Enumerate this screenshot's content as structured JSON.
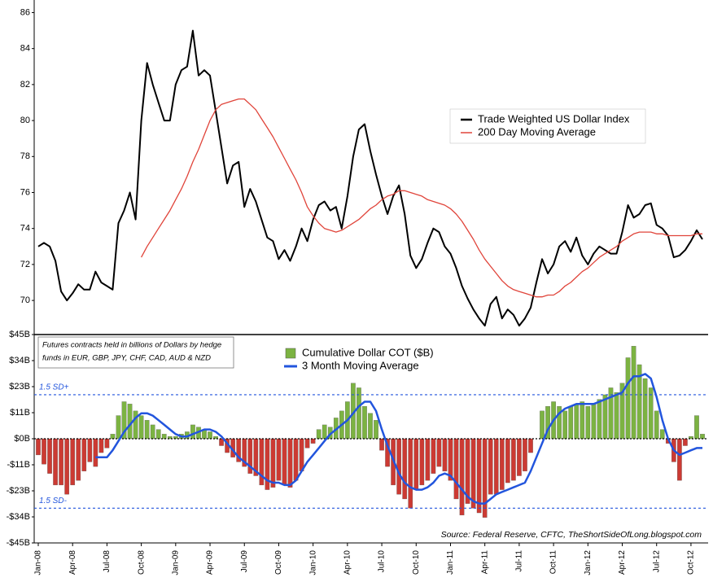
{
  "chart_data": [
    {
      "type": "line",
      "ylim": [
        68.15,
        86.7
      ],
      "yticks": [
        70,
        72,
        74,
        76,
        78,
        80,
        82,
        84,
        86
      ],
      "legend": "center-right",
      "series": [
        {
          "name": "Trade Weighted US Dollar Index",
          "color": "#000000",
          "values": [
            73.0,
            73.2,
            73.0,
            72.2,
            70.5,
            70.0,
            70.4,
            70.9,
            70.6,
            70.6,
            71.6,
            71.0,
            70.8,
            70.6,
            74.3,
            75.0,
            76.0,
            74.5,
            80.0,
            83.2,
            82.0,
            81.0,
            80.0,
            80.0,
            82.0,
            82.8,
            83.0,
            85.0,
            82.5,
            82.8,
            82.5,
            80.5,
            78.5,
            76.5,
            77.5,
            77.7,
            75.2,
            76.2,
            75.5,
            74.5,
            73.5,
            73.3,
            72.3,
            72.8,
            72.2,
            73.0,
            74.0,
            73.3,
            74.5,
            75.3,
            75.5,
            75.0,
            75.2,
            74.0,
            75.8,
            78.0,
            79.5,
            79.8,
            78.3,
            77.0,
            75.8,
            74.8,
            75.8,
            76.4,
            74.8,
            72.5,
            71.8,
            72.3,
            73.2,
            74.0,
            73.8,
            73.0,
            72.6,
            71.8,
            70.8,
            70.1,
            69.5,
            69.0,
            68.6,
            69.8,
            70.2,
            69.0,
            69.5,
            69.2,
            68.6,
            69.0,
            69.6,
            71.0,
            72.3,
            71.5,
            72.0,
            73.0,
            73.3,
            72.7,
            73.5,
            72.5,
            72.0,
            72.6,
            73.0,
            72.8,
            72.6,
            72.6,
            73.8,
            75.3,
            74.6,
            74.8,
            75.3,
            75.4,
            74.2,
            74.0,
            73.6,
            72.4,
            72.5,
            72.8,
            73.3,
            73.9,
            73.4
          ]
        },
        {
          "name": "200 Day Moving Average",
          "color": "#e0443a",
          "values": [
            null,
            null,
            null,
            null,
            null,
            null,
            null,
            null,
            null,
            null,
            null,
            null,
            null,
            null,
            null,
            null,
            null,
            null,
            72.4,
            73.0,
            73.5,
            74.0,
            74.5,
            75.0,
            75.6,
            76.2,
            76.9,
            77.7,
            78.4,
            79.2,
            80.0,
            80.6,
            80.9,
            81.0,
            81.1,
            81.2,
            81.2,
            80.9,
            80.6,
            80.1,
            79.6,
            79.1,
            78.5,
            77.9,
            77.3,
            76.7,
            76.0,
            75.2,
            74.7,
            74.3,
            74.0,
            73.9,
            73.8,
            73.9,
            74.1,
            74.3,
            74.5,
            74.8,
            75.1,
            75.3,
            75.6,
            75.8,
            75.9,
            76.1,
            76.1,
            76.0,
            75.9,
            75.8,
            75.6,
            75.5,
            75.4,
            75.3,
            75.1,
            74.8,
            74.4,
            73.9,
            73.4,
            72.8,
            72.3,
            71.9,
            71.5,
            71.1,
            70.8,
            70.6,
            70.5,
            70.4,
            70.3,
            70.2,
            70.2,
            70.3,
            70.3,
            70.5,
            70.8,
            71.0,
            71.3,
            71.6,
            71.8,
            72.1,
            72.4,
            72.6,
            72.8,
            73.0,
            73.3,
            73.5,
            73.7,
            73.8,
            73.8,
            73.8,
            73.7,
            73.7,
            73.6,
            73.6,
            73.6,
            73.6,
            73.6,
            73.7,
            73.7
          ]
        }
      ]
    },
    {
      "type": "bar",
      "annotation": [
        "Futures contracts held in billions of Dollars by hedge",
        "funds in EUR, GBP, JPY, CHF, CAD, AUD & NZD"
      ],
      "source": "Source: Federal Reserve, CFTC, TheShortSideOfLong.blogspot.com",
      "categories": [
        "Jan-08",
        null,
        null,
        null,
        null,
        null,
        "Apr-08",
        null,
        null,
        null,
        null,
        null,
        "Jul-08",
        null,
        null,
        null,
        null,
        null,
        "Oct-08",
        null,
        null,
        null,
        null,
        null,
        "Jan-09",
        null,
        null,
        null,
        null,
        null,
        "Apr-09",
        null,
        null,
        null,
        null,
        null,
        "Jul-09",
        null,
        null,
        null,
        null,
        null,
        "Oct-09",
        null,
        null,
        null,
        null,
        null,
        "Jan-10",
        null,
        null,
        null,
        null,
        null,
        "Apr-10",
        null,
        null,
        null,
        null,
        null,
        "Jul-10",
        null,
        null,
        null,
        null,
        null,
        "Oct-10",
        null,
        null,
        null,
        null,
        null,
        "Jan-11",
        null,
        null,
        null,
        null,
        null,
        "Apr-11",
        null,
        null,
        null,
        null,
        null,
        "Jul-11",
        null,
        null,
        null,
        null,
        null,
        "Oct-11",
        null,
        null,
        null,
        null,
        null,
        "Jan-12",
        null,
        null,
        null,
        null,
        null,
        "Apr-12",
        null,
        null,
        null,
        null,
        null,
        "Jul-12",
        null,
        null,
        null,
        null,
        null,
        "Oct-12",
        null,
        null
      ],
      "ylim": [
        -45,
        45
      ],
      "yticks": [
        {
          "value": 45,
          "label": "$45B"
        },
        {
          "value": 33.75,
          "label": "$34B"
        },
        {
          "value": 22.5,
          "label": "$23B"
        },
        {
          "value": 11.25,
          "label": "$11B"
        },
        {
          "value": 0,
          "label": "$0B"
        },
        {
          "value": -11.25,
          "label": "-$11B"
        },
        {
          "value": -22.5,
          "label": "-$23B"
        },
        {
          "value": -33.75,
          "label": "-$34B"
        },
        {
          "value": -45,
          "label": "-$45B"
        }
      ],
      "reference_lines": [
        {
          "value": 19,
          "label": "1.5 SD+",
          "color": "#2255dd"
        },
        {
          "value": -30,
          "label": "1.5 SD-",
          "color": "#2255dd"
        }
      ],
      "legend": "top-center",
      "series": [
        {
          "name": "Cumulative Dollar COT ($B)",
          "color": "#7cb342",
          "negative_color": "#cc3a33",
          "values": [
            -7,
            -11,
            -15,
            -20,
            -20,
            -24,
            -20,
            -18,
            -14,
            -10,
            -12,
            -6,
            -4,
            2,
            10,
            16,
            15,
            12,
            10,
            8,
            6,
            4,
            2,
            1,
            1,
            2,
            3,
            6,
            5,
            4,
            3,
            1,
            -3,
            -6,
            -8,
            -10,
            -12,
            -15,
            -16,
            -20,
            -22,
            -21,
            -18,
            -20,
            -21,
            -18,
            -14,
            -4,
            -2,
            4,
            6,
            5,
            9,
            12,
            16,
            24,
            22,
            14,
            11,
            8,
            -5,
            -12,
            -20,
            -24,
            -26,
            -30,
            -22,
            -20,
            -18,
            -15,
            -12,
            -14,
            -18,
            -26,
            -33,
            -28,
            -30,
            -32,
            -34,
            -24,
            -24,
            -22,
            -19,
            -18,
            -16,
            -14,
            -6,
            0,
            12,
            14,
            16,
            14,
            12,
            14,
            15,
            16,
            14,
            15,
            17,
            19,
            22,
            20,
            24,
            35,
            40,
            32,
            26,
            22,
            12,
            4,
            -2,
            -10,
            -18,
            -3,
            1,
            10,
            2
          ]
        },
        {
          "name": "3 Month Moving Average",
          "type": "line",
          "color": "#2255dd",
          "values": [
            null,
            null,
            null,
            null,
            null,
            null,
            null,
            null,
            null,
            null,
            -8,
            -8,
            -8,
            -5,
            -1,
            3,
            6,
            9,
            11,
            11,
            10,
            8,
            6,
            4,
            2,
            1,
            1,
            2,
            3,
            4,
            4,
            3,
            1,
            -2,
            -5,
            -8,
            -10,
            -12,
            -14,
            -16,
            -18,
            -19,
            -19,
            -20,
            -20,
            -18,
            -14,
            -10,
            -7,
            -4,
            -1,
            2,
            4,
            6,
            8,
            11,
            14,
            16,
            16,
            12,
            4,
            -3,
            -9,
            -15,
            -19,
            -21,
            -22,
            -22,
            -21,
            -19,
            -16,
            -15,
            -16,
            -19,
            -22,
            -25,
            -27,
            -28,
            -28,
            -26,
            -24,
            -23,
            -22,
            -21,
            -20,
            -19,
            -14,
            -8,
            -2,
            4,
            8,
            11,
            13,
            14,
            15,
            15,
            15,
            15,
            16,
            17,
            18,
            19,
            20,
            24,
            27,
            27,
            28,
            26,
            18,
            8,
            0,
            -5,
            -7,
            -6,
            -5,
            -4,
            -4
          ]
        }
      ]
    }
  ]
}
